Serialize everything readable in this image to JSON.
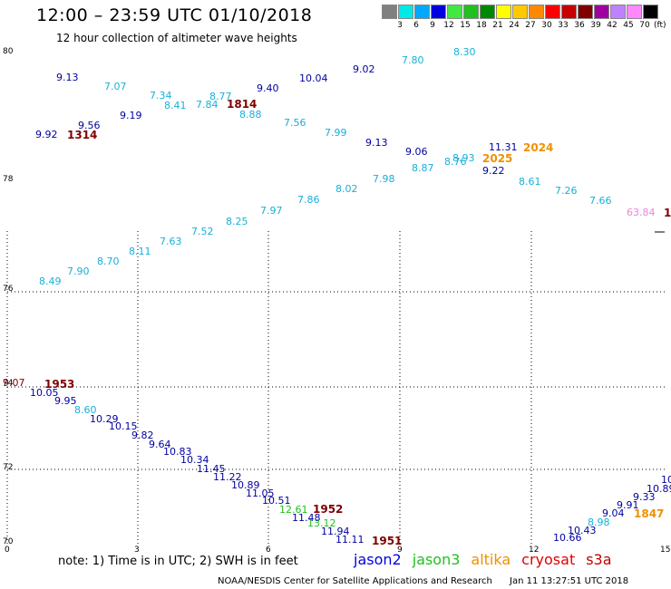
{
  "header": {
    "title": "12:00 – 23:59 UTC 01/10/2018",
    "subtitle": "12 hour collection of altimeter wave heights"
  },
  "legend": {
    "unit": "(ft)",
    "bins": [
      {
        "label": "3",
        "color": "#808080"
      },
      {
        "label": "6",
        "color": "#00e8e8"
      },
      {
        "label": "9",
        "color": "#00a8ff"
      },
      {
        "label": "12",
        "color": "#0000e0"
      },
      {
        "label": "15",
        "color": "#40e840"
      },
      {
        "label": "18",
        "color": "#20c020"
      },
      {
        "label": "21",
        "color": "#008800"
      },
      {
        "label": "24",
        "color": "#ffff00"
      },
      {
        "label": "27",
        "color": "#ffc800"
      },
      {
        "label": "30",
        "color": "#ff8800"
      },
      {
        "label": "33",
        "color": "#ff0000"
      },
      {
        "label": "36",
        "color": "#c80000"
      },
      {
        "label": "39",
        "color": "#800000"
      },
      {
        "label": "42",
        "color": "#a000a0"
      },
      {
        "label": "45",
        "color": "#c080ff"
      },
      {
        "label": "70",
        "color": "#ff88ff"
      },
      {
        "label": "",
        "color": "#000000"
      }
    ]
  },
  "axes": {
    "x_ticks": [
      "0",
      "3",
      "6",
      "9",
      "12",
      "15"
    ],
    "y_ticks": [
      "80",
      "78",
      "76",
      "74",
      "72",
      "70"
    ]
  },
  "colors": {
    "cyan": "#18b0d8",
    "blue": "#0000a0",
    "green": "#20c020",
    "orange": "#f09000",
    "darkred": "#800000",
    "pink": "#f080e0",
    "grid": "#000000"
  },
  "observations": [
    {
      "text": "9.13",
      "c": "blue"
    },
    {
      "text": "7.07",
      "c": "cyan"
    },
    {
      "text": "7.34",
      "c": "cyan"
    },
    {
      "text": "8.41",
      "c": "cyan"
    },
    {
      "text": "7.84",
      "c": "cyan"
    },
    {
      "text": "8.77",
      "c": "cyan"
    },
    {
      "text": "9.40",
      "c": "blue"
    },
    {
      "text": "10.04",
      "c": "blue"
    },
    {
      "text": "9.02",
      "c": "blue"
    },
    {
      "text": "7.80",
      "c": "cyan"
    },
    {
      "text": "8.30",
      "c": "cyan"
    },
    {
      "text": "9.19",
      "c": "blue"
    },
    {
      "text": "8.88",
      "c": "cyan"
    },
    {
      "text": "9.56",
      "c": "blue"
    },
    {
      "text": "9.92",
      "c": "blue"
    },
    {
      "text": "7.56",
      "c": "cyan"
    },
    {
      "text": "7.99",
      "c": "cyan"
    },
    {
      "text": "9.13",
      "c": "blue"
    },
    {
      "text": "9.06",
      "c": "blue"
    },
    {
      "text": "11.31",
      "c": "blue"
    },
    {
      "text": "8.76",
      "c": "cyan"
    },
    {
      "text": "8.93",
      "c": "cyan"
    },
    {
      "text": "8.87",
      "c": "cyan"
    },
    {
      "text": "9.22",
      "c": "blue"
    },
    {
      "text": "7.98",
      "c": "cyan"
    },
    {
      "text": "8.61",
      "c": "cyan"
    },
    {
      "text": "8.02",
      "c": "cyan"
    },
    {
      "text": "7.26",
      "c": "cyan"
    },
    {
      "text": "7.86",
      "c": "cyan"
    },
    {
      "text": "7.66",
      "c": "cyan"
    },
    {
      "text": "7.97",
      "c": "cyan"
    },
    {
      "text": "63.84",
      "c": "pink"
    },
    {
      "text": "8.25",
      "c": "cyan"
    },
    {
      "text": "7.52",
      "c": "cyan"
    },
    {
      "text": "7.63",
      "c": "cyan"
    },
    {
      "text": "8.11",
      "c": "cyan"
    },
    {
      "text": "8.70",
      "c": "cyan"
    },
    {
      "text": "7.90",
      "c": "cyan"
    },
    {
      "text": "8.49",
      "c": "cyan"
    },
    {
      "text": "9.07",
      "c": "darkred"
    },
    {
      "text": "10.05",
      "c": "blue"
    },
    {
      "text": "9.95",
      "c": "blue"
    },
    {
      "text": "8.60",
      "c": "cyan"
    },
    {
      "text": "10.29",
      "c": "blue"
    },
    {
      "text": "10.15",
      "c": "blue"
    },
    {
      "text": "9.82",
      "c": "blue"
    },
    {
      "text": "9.64",
      "c": "blue"
    },
    {
      "text": "10.83",
      "c": "blue"
    },
    {
      "text": "10.34",
      "c": "blue"
    },
    {
      "text": "11.45",
      "c": "blue"
    },
    {
      "text": "11.22",
      "c": "blue"
    },
    {
      "text": "10.89",
      "c": "blue"
    },
    {
      "text": "11.05",
      "c": "blue"
    },
    {
      "text": "10.51",
      "c": "blue"
    },
    {
      "text": "12.61",
      "c": "green"
    },
    {
      "text": "11.48",
      "c": "blue"
    },
    {
      "text": "13.12",
      "c": "green"
    },
    {
      "text": "11.94",
      "c": "blue"
    },
    {
      "text": "11.11",
      "c": "blue"
    },
    {
      "text": "10.66",
      "c": "blue"
    },
    {
      "text": "10.43",
      "c": "blue"
    },
    {
      "text": "8.98",
      "c": "cyan"
    },
    {
      "text": "9.04",
      "c": "blue"
    },
    {
      "text": "9.91",
      "c": "blue"
    },
    {
      "text": "9.33",
      "c": "blue"
    },
    {
      "text": "10.89",
      "c": "blue"
    },
    {
      "text": "10",
      "c": "blue"
    }
  ],
  "pass_labels": [
    {
      "text": "1314",
      "c": "darkred"
    },
    {
      "text": "1814",
      "c": "darkred"
    },
    {
      "text": "2024",
      "c": "orange"
    },
    {
      "text": "2025",
      "c": "orange"
    },
    {
      "text": "1",
      "c": "darkred"
    },
    {
      "text": "1953",
      "c": "darkred"
    },
    {
      "text": "1952",
      "c": "darkred"
    },
    {
      "text": "1951",
      "c": "darkred"
    },
    {
      "text": "1847",
      "c": "orange"
    }
  ],
  "footer": {
    "note": "note: 1) Time is in UTC; 2) SWH is in feet",
    "satellites": [
      {
        "name": "jason2",
        "color": "#0000e0"
      },
      {
        "name": "jason3",
        "color": "#20c020"
      },
      {
        "name": "altika",
        "color": "#f09000"
      },
      {
        "name": "cryosat",
        "color": "#e00000"
      },
      {
        "name": "s3a",
        "color": "#c00000"
      }
    ],
    "credit": "NOAA/NESDIS Center for Satellite Applications and Research",
    "generated": "Jan 11 13:27:51 UTC 2018"
  }
}
